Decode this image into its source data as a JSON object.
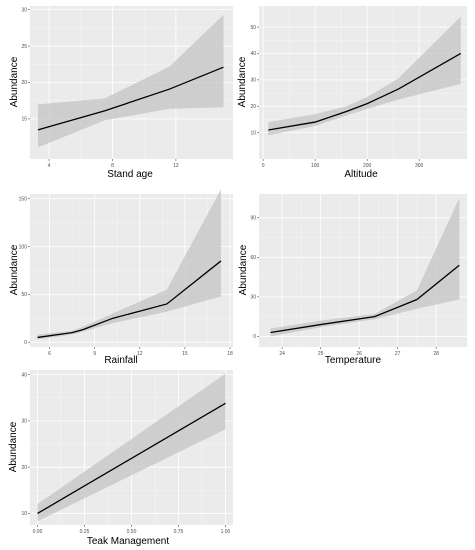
{
  "chart_data": [
    {
      "type": "line",
      "xlabel": "Stand age",
      "ylabel": "Abundance",
      "xlim": [
        2.8,
        15.6
      ],
      "ylim": [
        9.5,
        30.5
      ],
      "xticks": [
        4,
        8,
        12
      ],
      "yticks": [
        15,
        20,
        25,
        30
      ],
      "x": [
        3.3,
        7.5,
        11.6,
        15.0
      ],
      "y": [
        13.5,
        16.1,
        19.1,
        22.1
      ],
      "lower": [
        11.1,
        14.8,
        16.4,
        16.6
      ],
      "upper": [
        17.0,
        17.8,
        22.2,
        29.3
      ]
    },
    {
      "type": "line",
      "xlabel": "Altitude",
      "ylabel": "Abundance",
      "xlim": [
        -8,
        392
      ],
      "ylim": [
        0,
        58
      ],
      "xticks": [
        0,
        100,
        200,
        300
      ],
      "yticks": [
        10,
        20,
        30,
        40,
        50
      ],
      "x": [
        10,
        100,
        160,
        200,
        260,
        380
      ],
      "y": [
        11,
        14,
        18,
        21,
        26.5,
        40
      ],
      "lower": [
        9,
        12.5,
        16.5,
        19,
        22.5,
        28.5
      ],
      "upper": [
        14,
        17,
        20,
        23.5,
        30.5,
        54
      ]
    },
    {
      "type": "line",
      "xlabel": "Rainfall",
      "ylabel": "Abundance",
      "xlim": [
        4.7,
        18.2
      ],
      "ylim": [
        -5,
        155
      ],
      "xticks": [
        6,
        9,
        12,
        15,
        18
      ],
      "yticks": [
        0,
        50,
        100,
        150
      ],
      "x": [
        5.2,
        7.5,
        8.2,
        10.2,
        13.8,
        17.4
      ],
      "y": [
        5,
        10,
        13,
        25,
        40,
        85
      ],
      "lower": [
        3,
        8,
        11,
        20,
        32,
        48
      ],
      "upper": [
        8,
        12,
        16,
        30,
        55,
        160
      ]
    },
    {
      "type": "line",
      "xlabel": "Temperature",
      "ylabel": "Abundance",
      "xlim": [
        23.4,
        28.8
      ],
      "ylim": [
        -8,
        108
      ],
      "xticks": [
        24,
        25,
        26,
        27,
        28
      ],
      "yticks": [
        0,
        30,
        60,
        90
      ],
      "x": [
        23.7,
        25.0,
        26.4,
        27.5,
        28.6
      ],
      "y": [
        3,
        9,
        15,
        28,
        54
      ],
      "lower": [
        0,
        7,
        13,
        21,
        28
      ],
      "upper": [
        6,
        12,
        17,
        35,
        105
      ]
    },
    {
      "type": "line",
      "xlabel": "Teak Management",
      "ylabel": "Abundance",
      "xlim": [
        -0.04,
        1.04
      ],
      "ylim": [
        7.5,
        41
      ],
      "xticks": [
        0.0,
        0.25,
        0.5,
        0.75,
        1.0
      ],
      "xtick_labels": [
        "0.00",
        "0.25",
        "0.50",
        "0.75",
        "1.00"
      ],
      "yticks": [
        10,
        20,
        30,
        40
      ],
      "x": [
        0,
        1
      ],
      "y": [
        10,
        33.8
      ],
      "lower": [
        8.3,
        28.2
      ],
      "upper": [
        12,
        40.2
      ]
    }
  ]
}
